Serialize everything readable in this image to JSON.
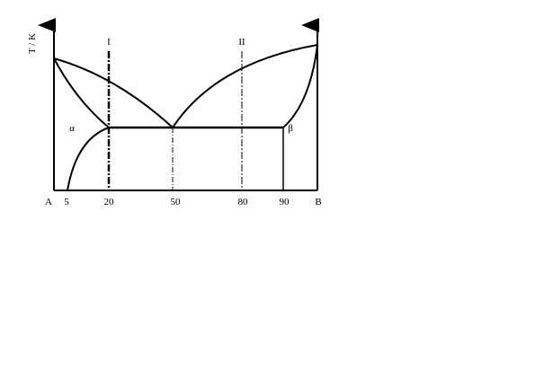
{
  "diagram": {
    "y_axis_label": "T / K",
    "component_left": "A",
    "component_right": "B",
    "x_ticks": [
      "5",
      "20",
      "50",
      "80",
      "90"
    ],
    "phase_labels": {
      "alpha": "α",
      "beta": "β"
    },
    "composition_lines": {
      "line_1": "I",
      "line_2": "II"
    }
  }
}
